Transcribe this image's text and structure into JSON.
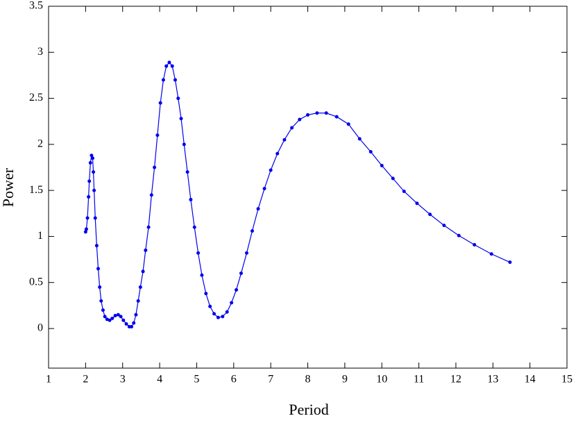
{
  "chart_data": {
    "type": "line",
    "x_label": "Period",
    "y_label": "Power",
    "xlim": [
      1,
      15
    ],
    "xticks": [
      1,
      2,
      3,
      4,
      5,
      6,
      7,
      8,
      9,
      10,
      11,
      12,
      13,
      14,
      15
    ],
    "ylim": [
      -0.43,
      3.5
    ],
    "yticks": [
      0,
      0.5,
      1,
      1.5,
      2,
      2.5,
      3,
      3.5
    ],
    "series": [
      {
        "color": "#0000ee",
        "x": [
          2.0,
          2.02,
          2.05,
          2.08,
          2.1,
          2.13,
          2.16,
          2.19,
          2.21,
          2.23,
          2.26,
          2.3,
          2.34,
          2.38,
          2.42,
          2.47,
          2.52,
          2.58,
          2.65,
          2.72,
          2.8,
          2.88,
          2.95,
          3.02,
          3.1,
          3.18,
          3.24,
          3.3,
          3.36,
          3.42,
          3.48,
          3.55,
          3.62,
          3.7,
          3.78,
          3.86,
          3.94,
          4.02,
          4.1,
          4.18,
          4.26,
          4.34,
          4.42,
          4.5,
          4.58,
          4.66,
          4.75,
          4.84,
          4.94,
          5.04,
          5.14,
          5.25,
          5.36,
          5.47,
          5.58,
          5.7,
          5.82,
          5.94,
          6.07,
          6.2,
          6.35,
          6.5,
          6.66,
          6.83,
          7.0,
          7.18,
          7.37,
          7.57,
          7.78,
          8.0,
          8.25,
          8.5,
          8.78,
          9.1,
          9.4,
          9.7,
          10.0,
          10.3,
          10.6,
          10.95,
          11.3,
          11.68,
          12.08,
          12.5,
          12.96,
          13.46
        ],
        "values": [
          1.05,
          1.08,
          1.2,
          1.43,
          1.6,
          1.8,
          1.88,
          1.85,
          1.7,
          1.5,
          1.2,
          0.9,
          0.65,
          0.45,
          0.3,
          0.2,
          0.13,
          0.1,
          0.09,
          0.11,
          0.14,
          0.15,
          0.13,
          0.09,
          0.05,
          0.02,
          0.02,
          0.06,
          0.15,
          0.3,
          0.45,
          0.62,
          0.85,
          1.1,
          1.45,
          1.75,
          2.1,
          2.45,
          2.7,
          2.85,
          2.89,
          2.85,
          2.7,
          2.5,
          2.28,
          2.0,
          1.7,
          1.4,
          1.1,
          0.82,
          0.58,
          0.38,
          0.24,
          0.16,
          0.12,
          0.13,
          0.18,
          0.28,
          0.42,
          0.6,
          0.82,
          1.06,
          1.3,
          1.52,
          1.72,
          1.9,
          2.05,
          2.18,
          2.27,
          2.32,
          2.34,
          2.34,
          2.3,
          2.22,
          2.06,
          1.92,
          1.77,
          1.63,
          1.49,
          1.36,
          1.24,
          1.12,
          1.01,
          0.91,
          0.81,
          0.72
        ]
      }
    ]
  }
}
